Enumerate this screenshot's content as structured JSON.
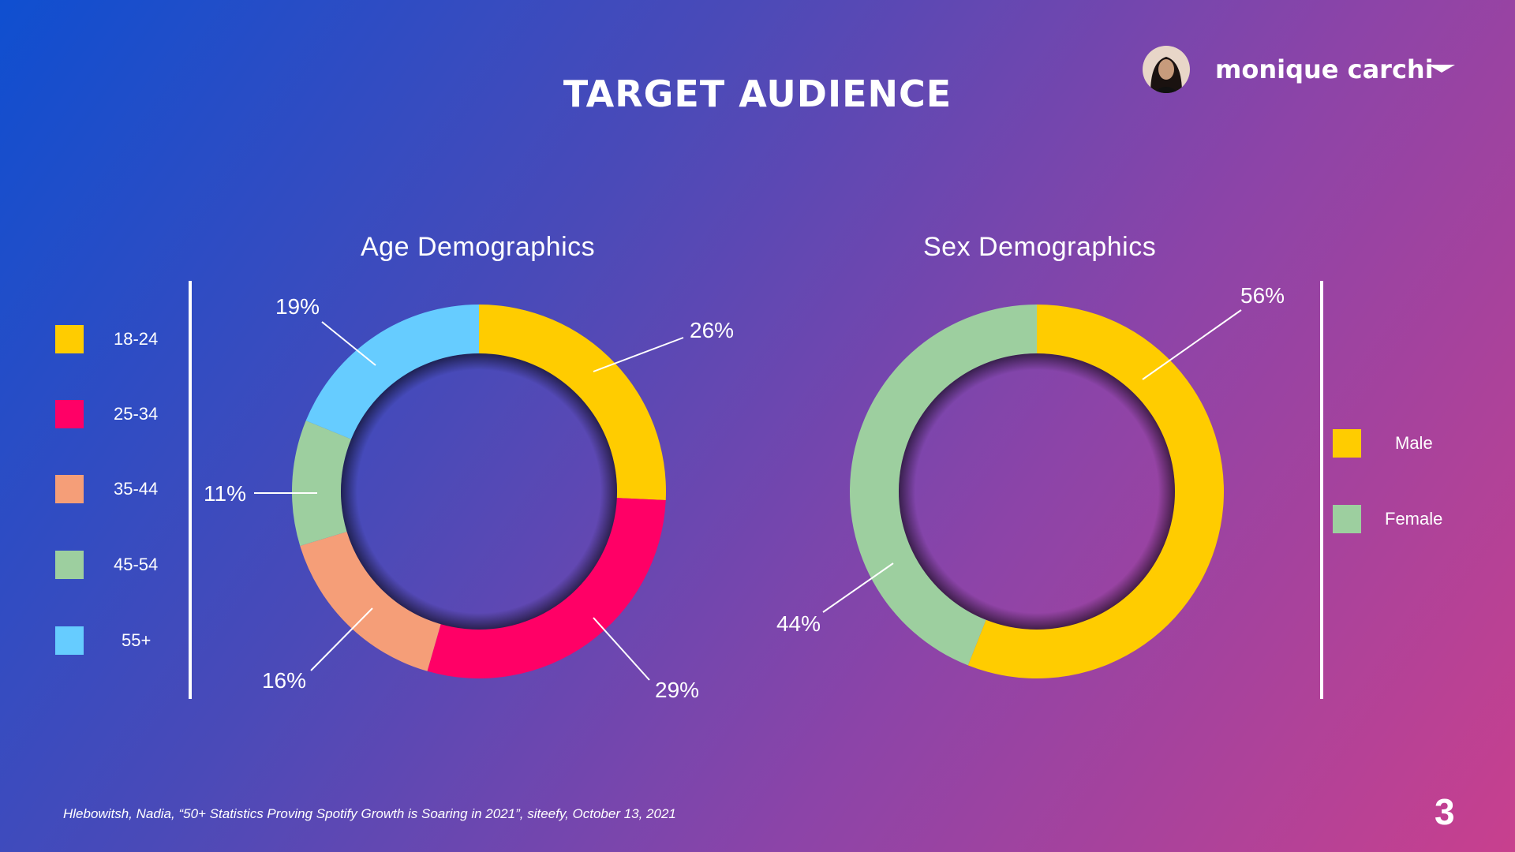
{
  "title": "TARGET AUDIENCE",
  "user": {
    "name": "monique carchi"
  },
  "footer": {
    "citation": "Hlebowitsh, Nadia, “50+ Statistics Proving Spotify Growth is Soaring in 2021”, siteefy, October 13, 2021",
    "page_number": "3"
  },
  "colors": {
    "yellow": "#ffcc00",
    "pink": "#ff0066",
    "salmon": "#f59e78",
    "green": "#9dcf9f",
    "lightblue": "#66ccff"
  },
  "chart_data": [
    {
      "type": "pie",
      "title": "Age Demographics",
      "categories": [
        "18-24",
        "25-34",
        "35-44",
        "45-54",
        "55+"
      ],
      "values": [
        26,
        29,
        16,
        11,
        19
      ],
      "labels": [
        "26%",
        "29%",
        "16%",
        "11%",
        "19%"
      ],
      "colors": [
        "#ffcc00",
        "#ff0066",
        "#f59e78",
        "#9dcf9f",
        "#66ccff"
      ],
      "legend": "left"
    },
    {
      "type": "pie",
      "title": "Sex Demographics",
      "categories": [
        "Male",
        "Female"
      ],
      "values": [
        56,
        44
      ],
      "labels": [
        "56%",
        "44%"
      ],
      "colors": [
        "#ffcc00",
        "#9dcf9f"
      ],
      "legend": "right"
    }
  ]
}
